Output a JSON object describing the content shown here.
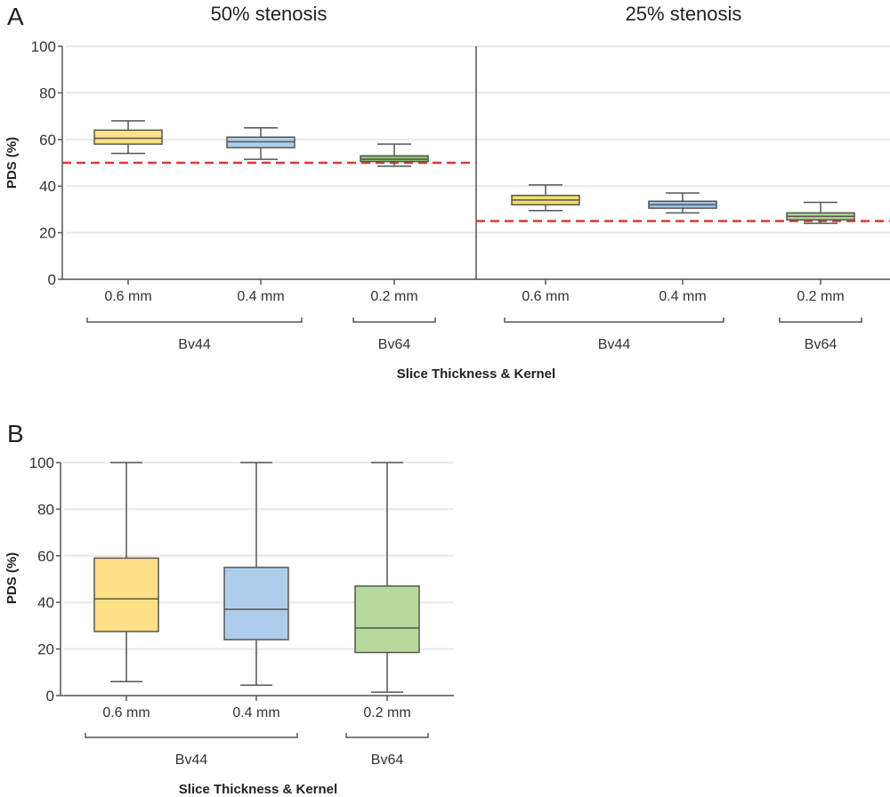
{
  "chart_data": [
    {
      "type": "box",
      "panel": "A",
      "ylabel": "PDS (%)",
      "xlabel": "Slice Thickness & Kernel",
      "ylim": [
        0,
        100
      ],
      "yticks": [
        0,
        20,
        40,
        60,
        80,
        100
      ],
      "grid": true,
      "subplots": [
        {
          "title": "50% stenosis",
          "reference_line": 50,
          "categories": [
            "0.6 mm",
            "0.4 mm",
            "0.2 mm"
          ],
          "groups": [
            {
              "label": "Bv44",
              "categories": [
                "0.6 mm",
                "0.4 mm"
              ]
            },
            {
              "label": "Bv64",
              "categories": [
                "0.2 mm"
              ]
            }
          ],
          "boxes": [
            {
              "category": "0.6 mm",
              "min": 54,
              "q1": 58,
              "median": 60.5,
              "q3": 64,
              "max": 68,
              "color": "#FEE086"
            },
            {
              "category": "0.4 mm",
              "min": 51.5,
              "q1": 56.5,
              "median": 59,
              "q3": 61,
              "max": 65,
              "color": "#AECDEB"
            },
            {
              "category": "0.2 mm",
              "min": 48.5,
              "q1": 50.5,
              "median": 51.5,
              "q3": 53,
              "max": 58,
              "color": "#8DC06B"
            }
          ]
        },
        {
          "title": "25% stenosis",
          "reference_line": 25,
          "categories": [
            "0.6 mm",
            "0.4 mm",
            "0.2 mm"
          ],
          "groups": [
            {
              "label": "Bv44",
              "categories": [
                "0.6 mm",
                "0.4 mm"
              ]
            },
            {
              "label": "Bv64",
              "categories": [
                "0.2 mm"
              ]
            }
          ],
          "boxes": [
            {
              "category": "0.6 mm",
              "min": 29.5,
              "q1": 32,
              "median": 34,
              "q3": 36,
              "max": 40.5,
              "color": "#F2DC6A"
            },
            {
              "category": "0.4 mm",
              "min": 28.5,
              "q1": 30.5,
              "median": 32,
              "q3": 33.5,
              "max": 37,
              "color": "#9FC3E4"
            },
            {
              "category": "0.2 mm",
              "min": 24,
              "q1": 25.5,
              "median": 27,
              "q3": 28.5,
              "max": 33,
              "color": "#A9D48C"
            }
          ]
        }
      ]
    },
    {
      "type": "box",
      "panel": "B",
      "ylabel": "PDS (%)",
      "xlabel": "Slice Thickness & Kernel",
      "ylim": [
        0,
        100
      ],
      "yticks": [
        0,
        20,
        40,
        60,
        80,
        100
      ],
      "grid": true,
      "categories": [
        "0.6 mm",
        "0.4 mm",
        "0.2 mm"
      ],
      "groups": [
        {
          "label": "Bv44",
          "categories": [
            "0.6 mm",
            "0.4 mm"
          ]
        },
        {
          "label": "Bv64",
          "categories": [
            "0.2 mm"
          ]
        }
      ],
      "boxes": [
        {
          "category": "0.6 mm",
          "min": 6,
          "q1": 27.5,
          "median": 41.5,
          "q3": 59,
          "max": 100,
          "color": "#FEE086"
        },
        {
          "category": "0.4 mm",
          "min": 4.5,
          "q1": 24,
          "median": 37,
          "q3": 55,
          "max": 100,
          "color": "#AECDEB"
        },
        {
          "category": "0.2 mm",
          "min": 1.5,
          "q1": 18.5,
          "median": 29,
          "q3": 47,
          "max": 100,
          "color": "#B6DA9C"
        }
      ]
    }
  ],
  "colors": {
    "reference_line": "#D93A34",
    "axis": "#555555",
    "grid": "#E8E8E8",
    "box_edge": "#555555"
  }
}
